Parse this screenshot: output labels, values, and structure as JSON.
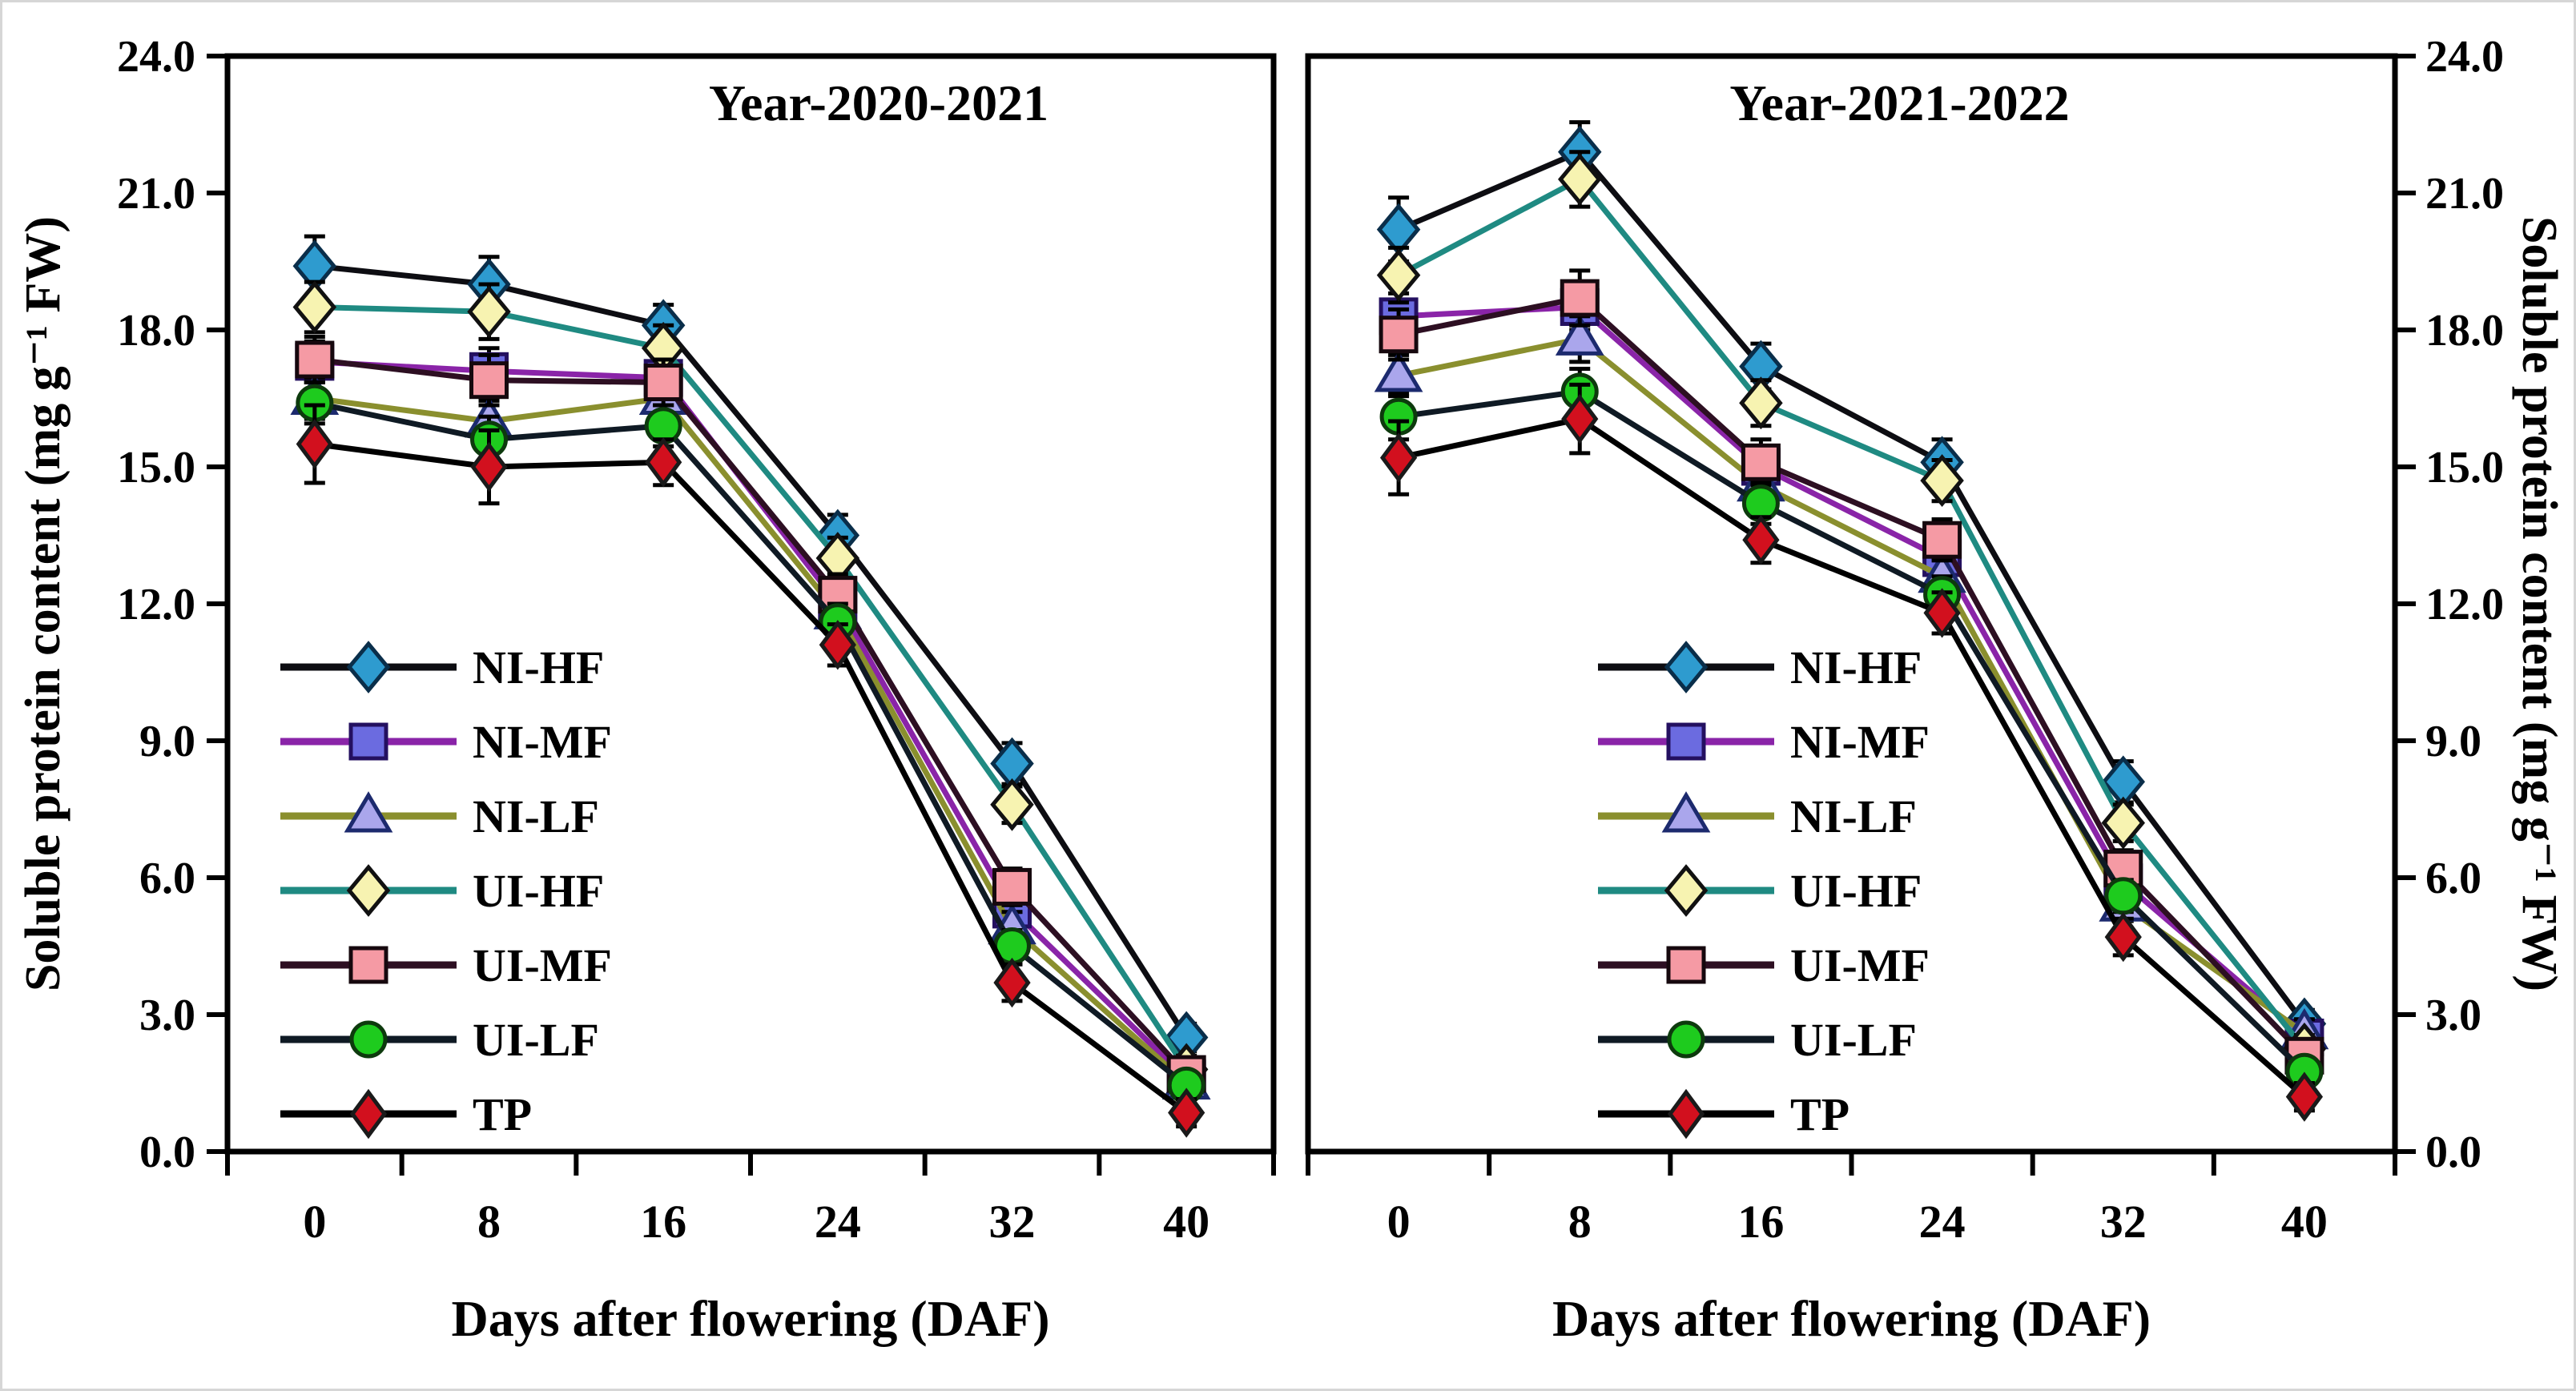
{
  "figure": {
    "background": "#ffffff",
    "frame_color": "#d6d6d6",
    "axis_color": "#000000",
    "y_axis_label_left": "Soluble protein content (mg g⁻¹ FW)",
    "y_axis_label_right": "Soluble protein content (mg g⁻¹ FW)",
    "x_axis_label": "Days after flowering (DAF)",
    "y_tick_labels": [
      "24.0",
      "21.0",
      "18.0",
      "15.0",
      "12.0",
      "9.0",
      "6.0",
      "3.0",
      "0.0"
    ],
    "x_tick_labels": [
      "0",
      "8",
      "16",
      "24",
      "32",
      "40"
    ]
  },
  "legend_order": [
    "NI-HF",
    "NI-MF",
    "NI-LF",
    "UI-HF",
    "UI-MF",
    "UI-LF",
    "TP"
  ],
  "chart_data": [
    {
      "type": "line",
      "title": "Year-2020-2021",
      "xlabel": "Days after flowering (DAF)",
      "ylabel": "Soluble protein content (mg g⁻¹ FW)",
      "ylim": [
        0,
        24
      ],
      "y_tick_step": 3.0,
      "grid": false,
      "legend_position": "inside-lower-left",
      "categories": [
        0,
        8,
        16,
        24,
        32,
        40
      ],
      "series": [
        {
          "name": "NI-HF",
          "marker": "diamond",
          "marker_fill": "#2e9bcf",
          "marker_edge": "#0a2e4a",
          "line_color": "#0d0d12",
          "values": [
            19.4,
            19.0,
            18.1,
            13.5,
            8.5,
            2.5
          ],
          "errors": [
            0.65,
            0.6,
            0.45,
            0.45,
            0.45,
            0.3
          ]
        },
        {
          "name": "NI-MF",
          "marker": "square",
          "marker_fill": "#6b6be0",
          "marker_edge": "#241060",
          "line_color": "#8a24a8",
          "values": [
            17.3,
            17.1,
            16.95,
            12.0,
            5.3,
            1.6
          ],
          "errors": [
            0.45,
            0.5,
            0.45,
            0.4,
            0.35,
            0.25
          ]
        },
        {
          "name": "NI-LF",
          "marker": "triangle",
          "marker_fill": "#aaa6ec",
          "marker_edge": "#1c2a6e",
          "line_color": "#8a8f2e",
          "values": [
            16.5,
            16.0,
            16.5,
            11.8,
            4.9,
            1.5
          ],
          "errors": [
            0.45,
            0.45,
            0.4,
            0.4,
            0.35,
            0.25
          ]
        },
        {
          "name": "UI-HF",
          "marker": "diamond",
          "marker_fill": "#f7f3b1",
          "marker_edge": "#111111",
          "line_color": "#1f8a82",
          "values": [
            18.5,
            18.4,
            17.6,
            13.0,
            7.6,
            1.8
          ],
          "errors": [
            0.55,
            0.6,
            0.5,
            0.45,
            0.4,
            0.3
          ]
        },
        {
          "name": "UI-MF",
          "marker": "square",
          "marker_fill": "#f59aa4",
          "marker_edge": "#16080e",
          "line_color": "#2d0f22",
          "values": [
            17.35,
            16.9,
            16.85,
            12.2,
            5.8,
            1.7
          ],
          "errors": [
            0.5,
            0.55,
            0.5,
            0.45,
            0.4,
            0.3
          ]
        },
        {
          "name": "UI-LF",
          "marker": "circle",
          "marker_fill": "#1ecb1e",
          "marker_edge": "#0d3a0d",
          "line_color": "#0f1a24",
          "values": [
            16.4,
            15.6,
            15.9,
            11.6,
            4.5,
            1.45
          ],
          "errors": [
            0.45,
            0.5,
            0.45,
            0.4,
            0.35,
            0.25
          ]
        },
        {
          "name": "TP",
          "marker": "diamond-small",
          "marker_fill": "#d2101e",
          "marker_edge": "#1a1a1a",
          "line_color": "#000000",
          "values": [
            15.5,
            15.0,
            15.1,
            11.1,
            3.7,
            0.85
          ],
          "errors": [
            0.85,
            0.8,
            0.5,
            0.45,
            0.4,
            0.3
          ]
        }
      ]
    },
    {
      "type": "line",
      "title": "Year-2021-2022",
      "xlabel": "Days after flowering (DAF)",
      "ylabel": "Soluble protein content (mg g⁻¹ FW)",
      "ylim": [
        0,
        24
      ],
      "y_tick_step": 3.0,
      "grid": false,
      "legend_position": "inside-lower-left",
      "categories": [
        0,
        8,
        16,
        24,
        32,
        40
      ],
      "series": [
        {
          "name": "NI-HF",
          "marker": "diamond",
          "marker_fill": "#2e9bcf",
          "marker_edge": "#0a2e4a",
          "line_color": "#0d0d12",
          "values": [
            20.2,
            21.9,
            17.2,
            15.1,
            8.1,
            2.8
          ],
          "errors": [
            0.7,
            0.65,
            0.5,
            0.5,
            0.45,
            0.3
          ]
        },
        {
          "name": "NI-MF",
          "marker": "square",
          "marker_fill": "#6b6be0",
          "marker_edge": "#241060",
          "line_color": "#8a24a8",
          "values": [
            18.3,
            18.5,
            15.0,
            13.0,
            5.9,
            2.5
          ],
          "errors": [
            0.5,
            0.5,
            0.45,
            0.4,
            0.35,
            0.3
          ]
        },
        {
          "name": "NI-LF",
          "marker": "triangle",
          "marker_fill": "#aaa6ec",
          "marker_edge": "#1c2a6e",
          "line_color": "#8a8f2e",
          "values": [
            17.0,
            17.8,
            14.6,
            12.6,
            5.4,
            2.6
          ],
          "errors": [
            0.45,
            0.5,
            0.45,
            0.4,
            0.35,
            0.3
          ]
        },
        {
          "name": "UI-HF",
          "marker": "diamond",
          "marker_fill": "#f7f3b1",
          "marker_edge": "#111111",
          "line_color": "#1f8a82",
          "values": [
            19.2,
            21.3,
            16.4,
            14.7,
            7.2,
            2.25
          ],
          "errors": [
            0.6,
            0.6,
            0.5,
            0.45,
            0.4,
            0.3
          ]
        },
        {
          "name": "UI-MF",
          "marker": "square",
          "marker_fill": "#f59aa4",
          "marker_edge": "#16080e",
          "line_color": "#2d0f22",
          "values": [
            17.9,
            18.7,
            15.1,
            13.4,
            6.2,
            2.1
          ],
          "errors": [
            0.55,
            0.6,
            0.5,
            0.45,
            0.4,
            0.3
          ]
        },
        {
          "name": "UI-LF",
          "marker": "circle",
          "marker_fill": "#1ecb1e",
          "marker_edge": "#0d3a0d",
          "line_color": "#0f1a24",
          "values": [
            16.1,
            16.65,
            14.2,
            12.2,
            5.6,
            1.75
          ],
          "errors": [
            0.5,
            0.5,
            0.45,
            0.4,
            0.35,
            0.3
          ]
        },
        {
          "name": "TP",
          "marker": "diamond-small",
          "marker_fill": "#d2101e",
          "marker_edge": "#1a1a1a",
          "line_color": "#000000",
          "values": [
            15.2,
            16.05,
            13.4,
            11.8,
            4.7,
            1.2
          ],
          "errors": [
            0.8,
            0.75,
            0.5,
            0.45,
            0.4,
            0.3
          ]
        }
      ]
    }
  ]
}
